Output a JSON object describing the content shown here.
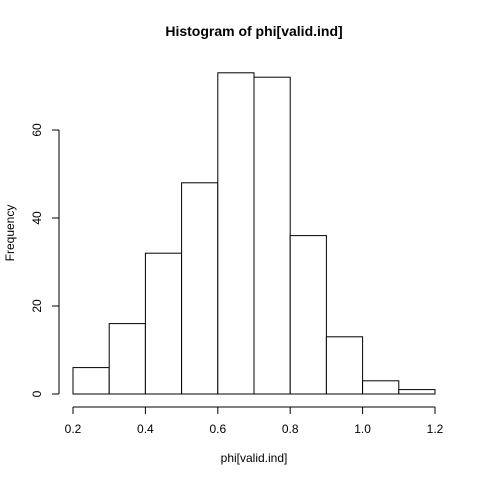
{
  "chart_data": {
    "type": "bar",
    "title": "Histogram of phi[valid.ind]",
    "xlabel": "phi[valid.ind]",
    "ylabel": "Frequency",
    "bins": [
      {
        "start": 0.2,
        "end": 0.3,
        "count": 6
      },
      {
        "start": 0.3,
        "end": 0.4,
        "count": 16
      },
      {
        "start": 0.4,
        "end": 0.5,
        "count": 32
      },
      {
        "start": 0.5,
        "end": 0.6,
        "count": 48
      },
      {
        "start": 0.6,
        "end": 0.7,
        "count": 73
      },
      {
        "start": 0.7,
        "end": 0.8,
        "count": 72
      },
      {
        "start": 0.8,
        "end": 0.9,
        "count": 36
      },
      {
        "start": 0.9,
        "end": 1.0,
        "count": 13
      },
      {
        "start": 1.0,
        "end": 1.1,
        "count": 3
      },
      {
        "start": 1.1,
        "end": 1.2,
        "count": 1
      }
    ],
    "xlim": [
      0.2,
      1.2
    ],
    "ylim": [
      0,
      73
    ],
    "x_ticks": [
      "0.2",
      "0.4",
      "0.6",
      "0.8",
      "1.0",
      "1.2"
    ],
    "y_ticks": [
      "0",
      "20",
      "40",
      "60"
    ],
    "grid": false,
    "legend": "none"
  }
}
